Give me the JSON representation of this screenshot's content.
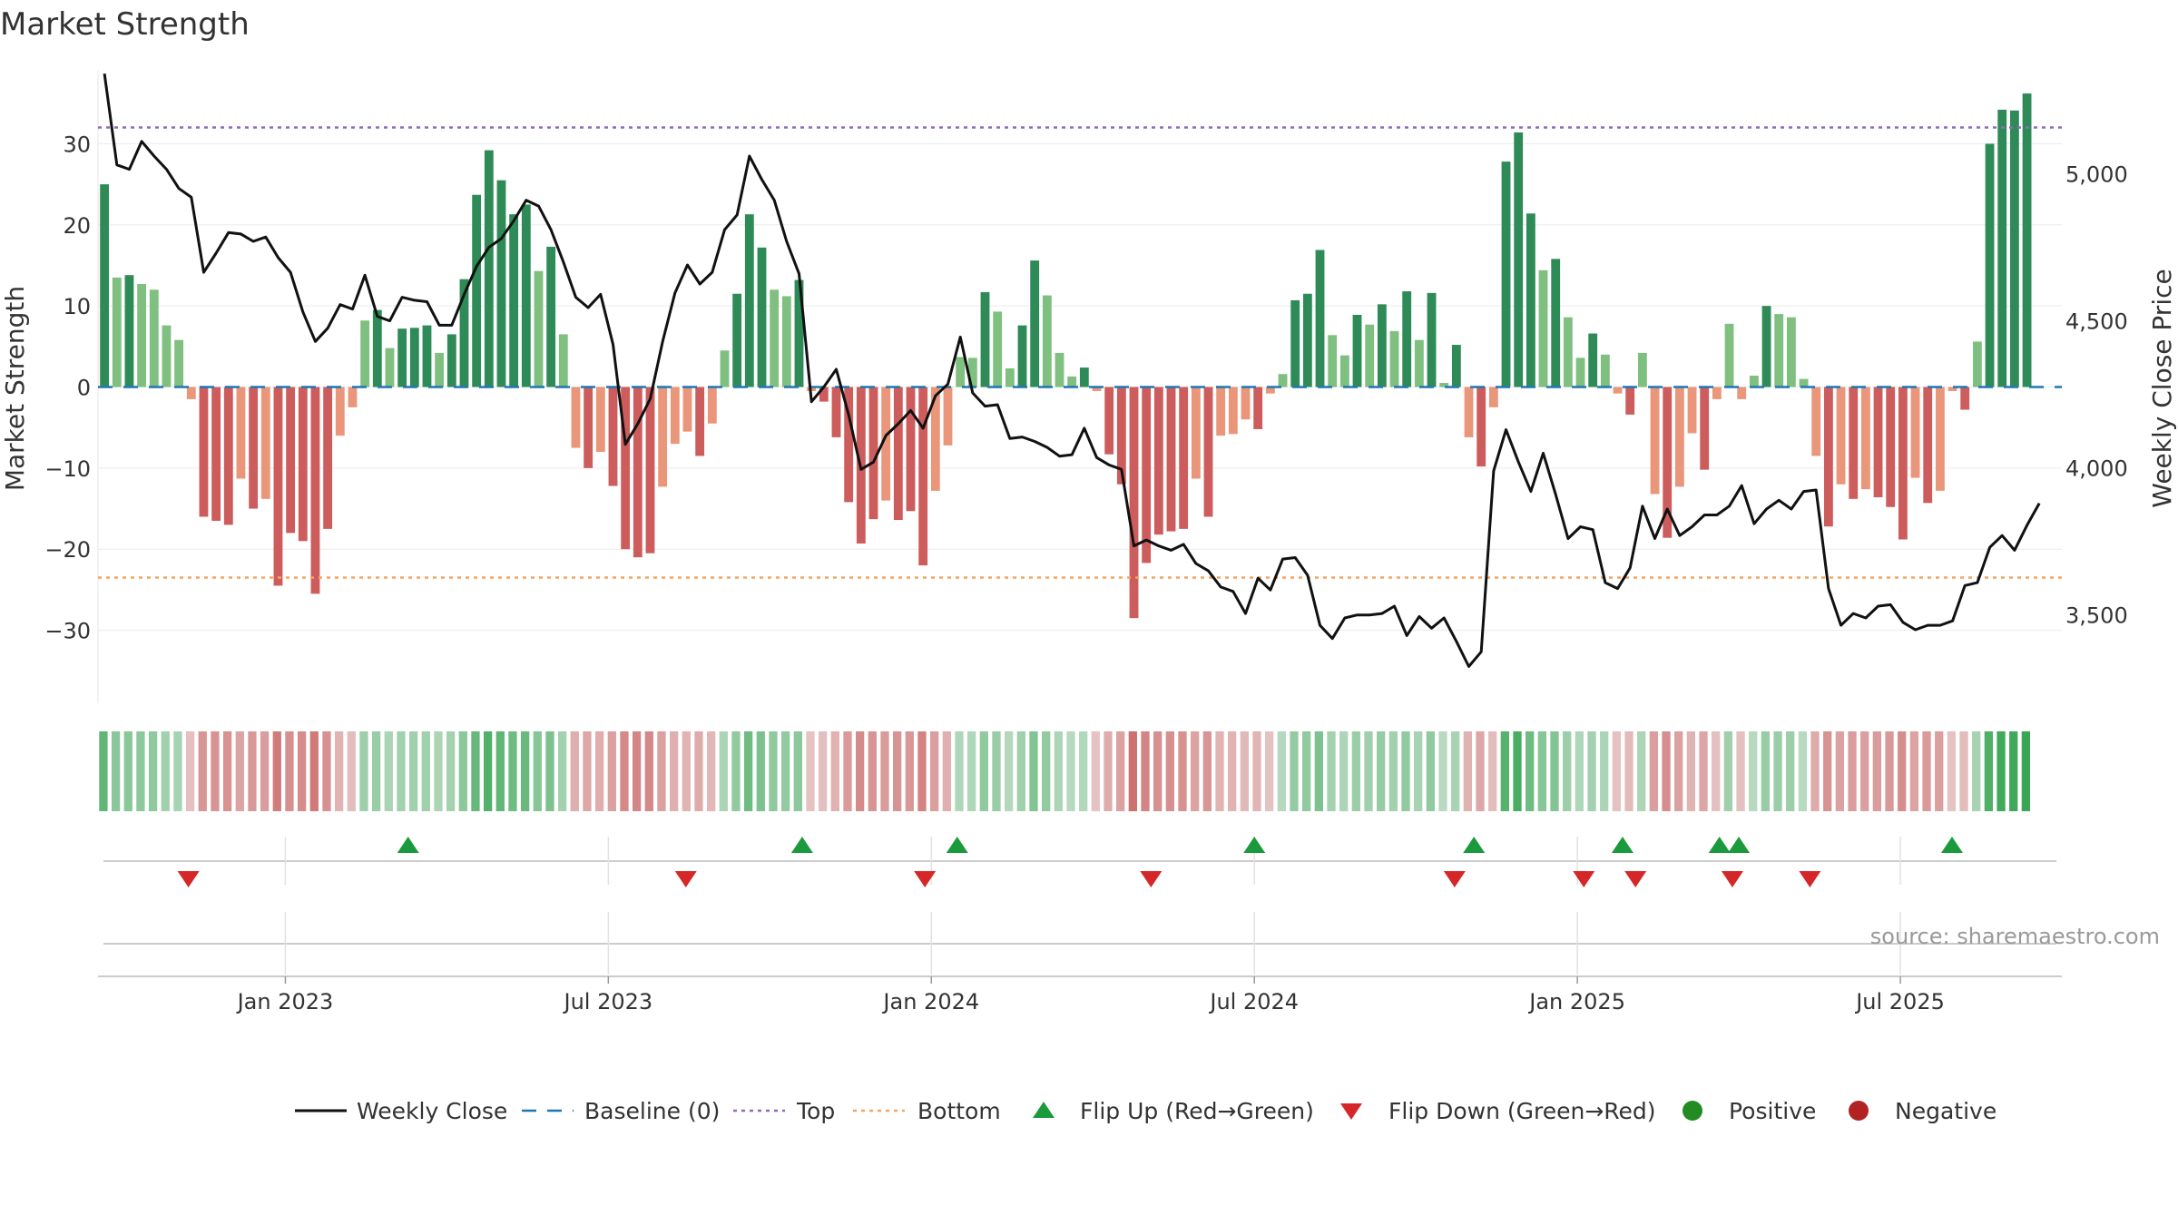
{
  "chart_data": {
    "type": "bar",
    "title": "Market Strength",
    "ylabel": "Market Strength",
    "ylabel_right": "Weekly Close Price",
    "ylim": [
      -39,
      39
    ],
    "ylim_right": [
      3200,
      5350
    ],
    "yticks": [
      -30,
      -20,
      -10,
      0,
      10,
      20,
      30
    ],
    "yticks_right": [
      3500,
      4000,
      4500,
      5000
    ],
    "yticks_right_labels": [
      "3,500",
      "4,000",
      "4,500",
      "5,000"
    ],
    "x_range": [
      2022.71,
      2025.75
    ],
    "x_ticks": [
      {
        "label": "Jan 2023",
        "x": 2023.0
      },
      {
        "label": "Jul 2023",
        "x": 2023.5
      },
      {
        "label": "Jan 2024",
        "x": 2024.0
      },
      {
        "label": "Jul 2024",
        "x": 2024.5
      },
      {
        "label": "Jan 2025",
        "x": 2025.0
      },
      {
        "label": "Jul 2025",
        "x": 2025.5
      }
    ],
    "x_start": 2022.72,
    "week_step": 0.0192,
    "strength": [
      25,
      13.5,
      13.8,
      12.7,
      12,
      7.6,
      5.8,
      -1.5,
      -16,
      -16.5,
      -17,
      -11.3,
      -15,
      -13.8,
      -24.5,
      -18,
      -19,
      -25.5,
      -17.5,
      -6,
      -2.5,
      8.2,
      9.5,
      4.8,
      7.2,
      7.3,
      7.6,
      4.2,
      6.5,
      13.3,
      23.7,
      29.2,
      25.5,
      21.3,
      22.5,
      14.3,
      17.3,
      6.5,
      -7.5,
      -10,
      -8,
      -12.2,
      -20,
      -21,
      -20.5,
      -12.3,
      -7,
      -5.5,
      -8.5,
      -4.5,
      4.5,
      11.5,
      21.3,
      17.2,
      12,
      11.2,
      13.2,
      -0.5,
      -1.8,
      -6.2,
      -14.2,
      -19.3,
      -16.3,
      -14,
      -16.4,
      -15.3,
      -22,
      -12.8,
      -7.2,
      3.7,
      3.6,
      11.7,
      9.3,
      2.3,
      7.6,
      15.6,
      11.3,
      4.2,
      1.3,
      2.4,
      -0.5,
      -8.3,
      -12,
      -28.5,
      -21.7,
      -18.2,
      -17.8,
      -17.5,
      -11.3,
      -16,
      -6,
      -5.8,
      -4,
      -5.2,
      -0.8,
      1.6,
      10.7,
      11.5,
      16.9,
      6.4,
      3.9,
      8.9,
      7.7,
      10.2,
      6.9,
      11.8,
      5.8,
      11.6,
      0.5,
      5.2,
      -6.2,
      -9.8,
      -2.5,
      27.8,
      31.4,
      21.4,
      14.4,
      15.8,
      8.6,
      3.6,
      6.6,
      4,
      -0.8,
      -3.4,
      4.2,
      -13.2,
      -18.6,
      -12.3,
      -5.7,
      -10.2,
      -1.5,
      7.8,
      -1.5,
      1.4,
      10,
      9,
      8.6,
      1,
      -8.5,
      -17.2,
      -12,
      -13.8,
      -12.6,
      -13.6,
      -14.8,
      -18.8,
      -11.2,
      -14.3,
      -12.8,
      -0.5,
      -2.8,
      5.6,
      30,
      34.2,
      34.1,
      36.2
    ],
    "close": [
      5340,
      5030,
      5015,
      5110,
      5060,
      5015,
      4950,
      4920,
      4665,
      4730,
      4800,
      4795,
      4770,
      4785,
      4715,
      4665,
      4530,
      4430,
      4475,
      4555,
      4540,
      4655,
      4515,
      4500,
      4580,
      4570,
      4565,
      4485,
      4485,
      4590,
      4685,
      4750,
      4780,
      4840,
      4910,
      4890,
      4810,
      4700,
      4580,
      4545,
      4590,
      4420,
      4080,
      4150,
      4235,
      4430,
      4595,
      4690,
      4625,
      4665,
      4810,
      4860,
      5060,
      4980,
      4910,
      4770,
      4660,
      4225,
      4275,
      4335,
      4180,
      3995,
      4020,
      4110,
      4150,
      4195,
      4135,
      4245,
      4285,
      4445,
      4255,
      4210,
      4215,
      4100,
      4105,
      4090,
      4070,
      4040,
      4045,
      4135,
      4035,
      4010,
      3995,
      3735,
      3755,
      3735,
      3720,
      3740,
      3675,
      3650,
      3595,
      3580,
      3505,
      3625,
      3585,
      3690,
      3695,
      3635,
      3465,
      3420,
      3490,
      3500,
      3500,
      3505,
      3530,
      3430,
      3495,
      3455,
      3490,
      3410,
      3325,
      3375,
      3990,
      4130,
      4020,
      3920,
      4050,
      3910,
      3760,
      3800,
      3790,
      3610,
      3590,
      3660,
      3870,
      3760,
      3860,
      3770,
      3800,
      3840,
      3840,
      3870,
      3940,
      3810,
      3860,
      3890,
      3860,
      3920,
      3925,
      3590,
      3465,
      3505,
      3490,
      3530,
      3535,
      3475,
      3450,
      3465,
      3465,
      3480,
      3600,
      3610,
      3730,
      3770,
      3720,
      3805,
      3880
    ],
    "flips_up": [
      2023.19,
      2023.8,
      2024.04,
      2024.5,
      2024.84,
      2025.07,
      2025.22,
      2025.25,
      2025.58
    ],
    "flips_down": [
      2022.85,
      2023.62,
      2023.99,
      2024.34,
      2024.81,
      2025.01,
      2025.09,
      2025.24,
      2025.36
    ],
    "top_line": 32,
    "bottom_line": -23.5,
    "source": "source: sharemaestro.com",
    "legend": [
      {
        "label": "Weekly Close",
        "kind": "line"
      },
      {
        "label": "Baseline (0)",
        "kind": "dash"
      },
      {
        "label": "Top",
        "kind": "dot-purple"
      },
      {
        "label": "Bottom",
        "kind": "dot-orange"
      },
      {
        "label": "Flip Up (Red→Green)",
        "kind": "tri-up"
      },
      {
        "label": "Flip Down (Green→Red)",
        "kind": "tri-down"
      },
      {
        "label": "Positive",
        "kind": "circle-green"
      },
      {
        "label": "Negative",
        "kind": "circle-red"
      }
    ],
    "colors": {
      "pos_strong": "#2e8b57",
      "pos_weak": "#7fbf7f",
      "neg_strong": "#cd5c5c",
      "neg_weak": "#e9967a",
      "close": "#111111",
      "baseline": "#1f77b4",
      "top": "#9467bd",
      "bottom": "#f4a460",
      "flip_up": "#1a9a3c",
      "flip_down": "#d62728",
      "positive": "#228b22",
      "negative": "#b22222"
    }
  }
}
